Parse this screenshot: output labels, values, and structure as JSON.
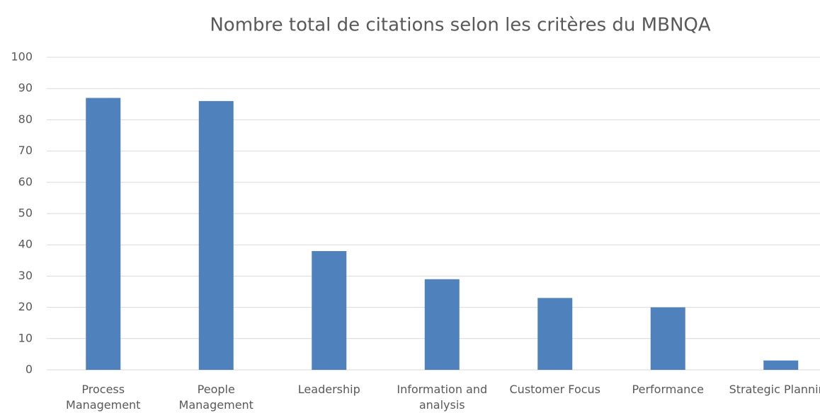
{
  "chart_data": {
    "type": "bar",
    "title": "Nombre total de citations selon les critères du MBNQA",
    "categories": [
      "Process Management",
      "People Management",
      "Leadership",
      "Information and analysis",
      "Customer Focus",
      "Performance",
      "Strategic Planning"
    ],
    "values": [
      87,
      86,
      38,
      29,
      23,
      20,
      3
    ],
    "color": "#4f81bd",
    "ylim": [
      0,
      100
    ],
    "yticks": [
      0,
      10,
      20,
      30,
      40,
      50,
      60,
      70,
      80,
      90,
      100
    ],
    "grid": true
  }
}
